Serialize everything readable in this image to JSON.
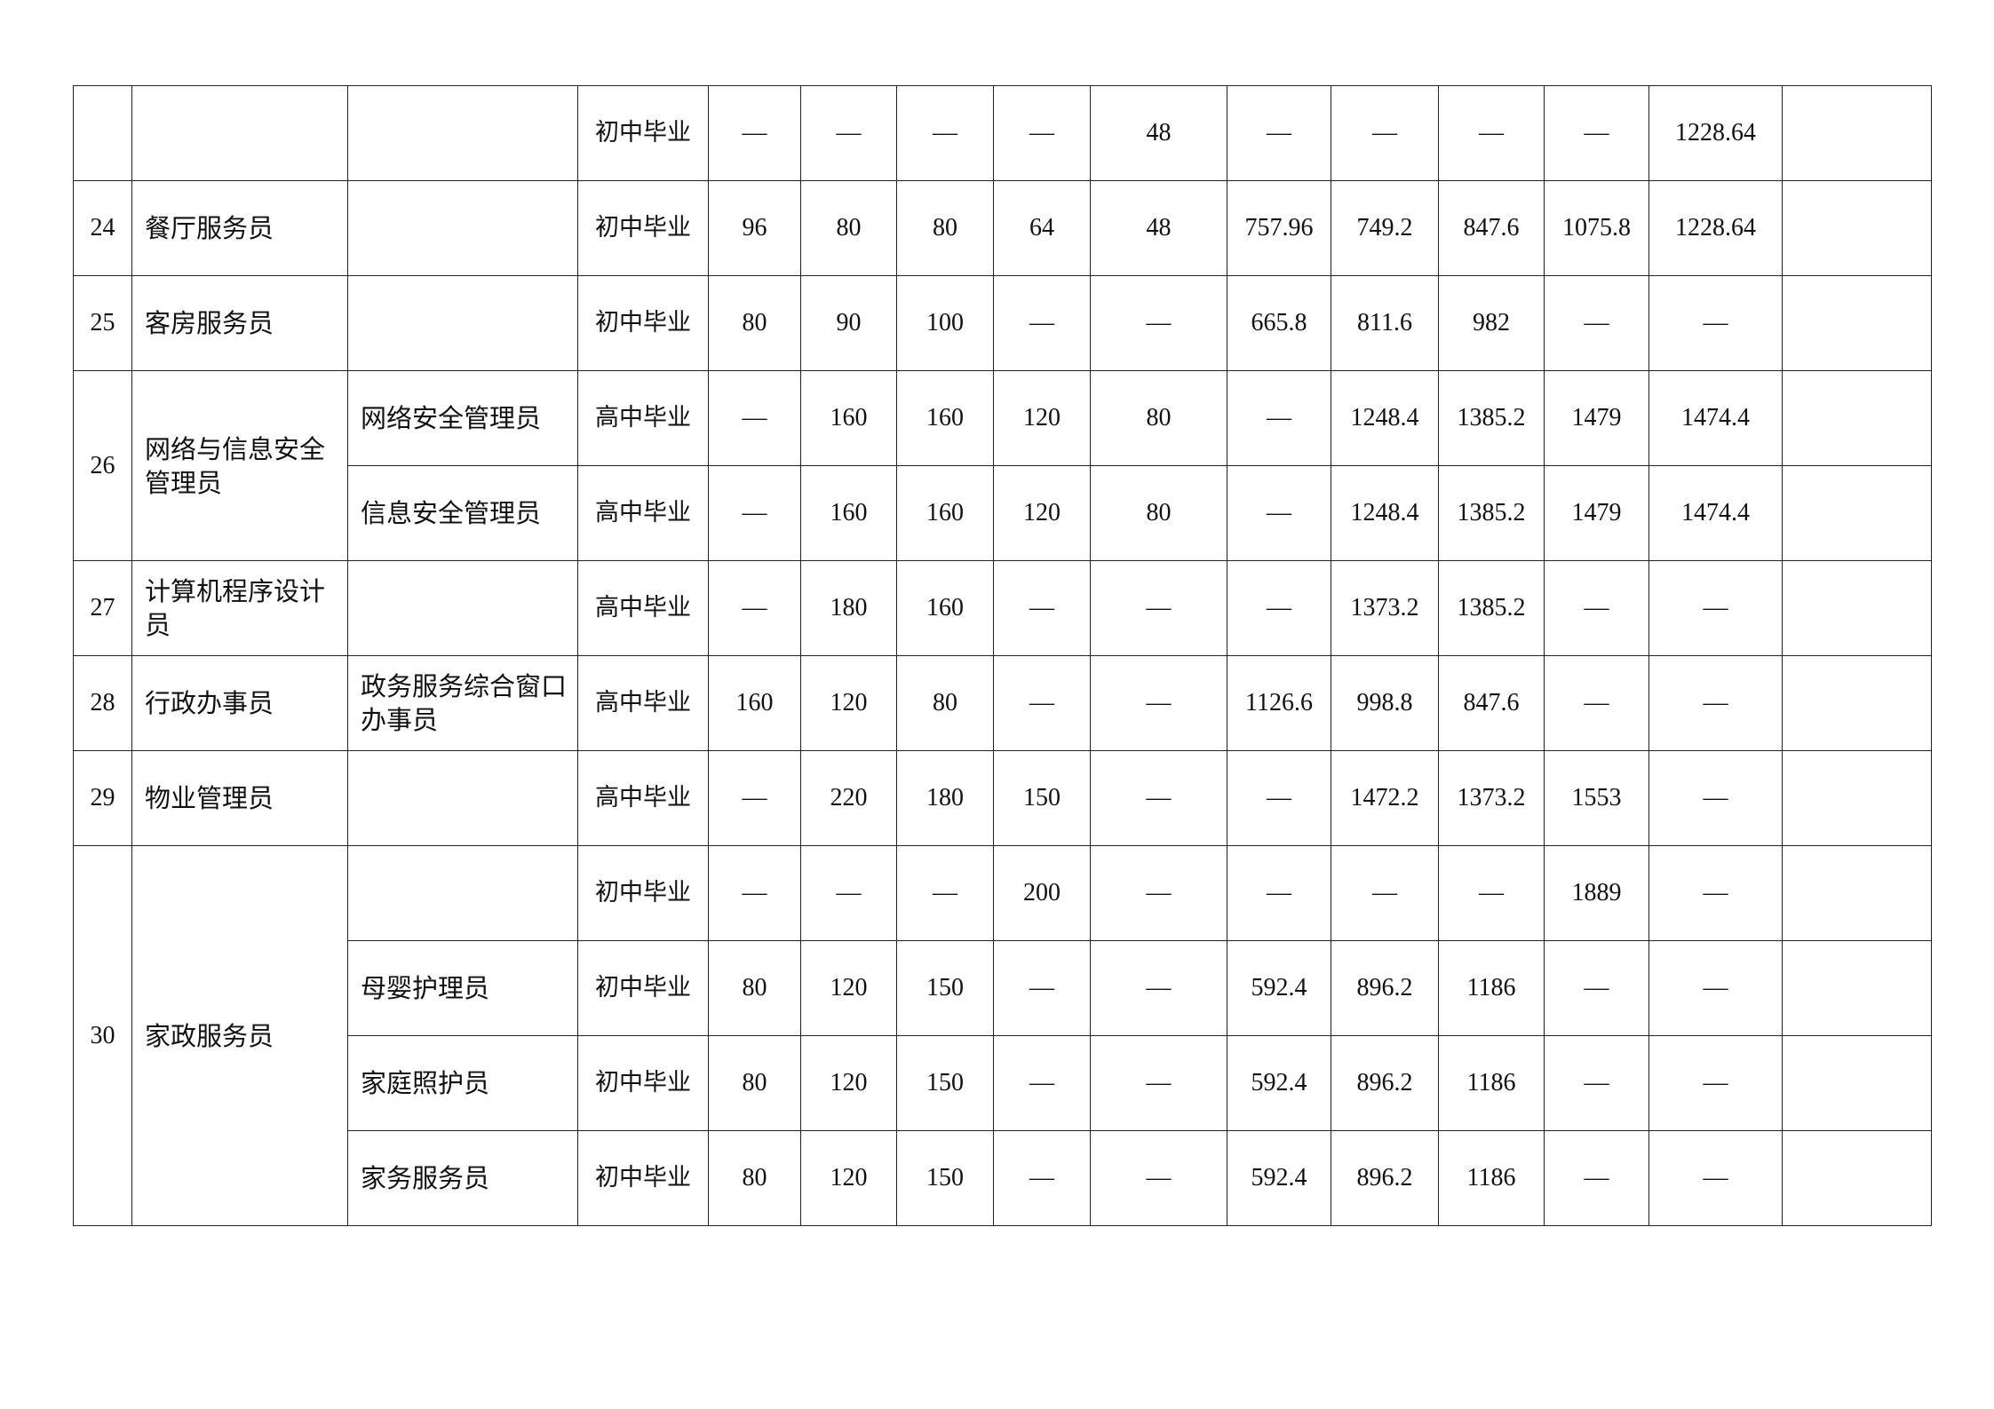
{
  "table": {
    "groups": [
      {
        "no": "",
        "name": "",
        "rows": [
          {
            "sub": "",
            "edu": "初中毕业",
            "values": [
              "—",
              "—",
              "—",
              "—",
              "48",
              "—",
              "—",
              "—",
              "—",
              "1228.64"
            ],
            "note": ""
          }
        ]
      },
      {
        "no": "24",
        "name": "餐厅服务员",
        "rows": [
          {
            "sub": "",
            "edu": "初中毕业",
            "values": [
              "96",
              "80",
              "80",
              "64",
              "48",
              "757.96",
              "749.2",
              "847.6",
              "1075.8",
              "1228.64"
            ],
            "note": ""
          }
        ]
      },
      {
        "no": "25",
        "name": "客房服务员",
        "rows": [
          {
            "sub": "",
            "edu": "初中毕业",
            "values": [
              "80",
              "90",
              "100",
              "—",
              "—",
              "665.8",
              "811.6",
              "982",
              "—",
              "—"
            ],
            "note": ""
          }
        ]
      },
      {
        "no": "26",
        "name": "网络与信息安全管理员",
        "rows": [
          {
            "sub": "网络安全管理员",
            "edu": "高中毕业",
            "values": [
              "—",
              "160",
              "160",
              "120",
              "80",
              "—",
              "1248.4",
              "1385.2",
              "1479",
              "1474.4"
            ],
            "note": ""
          },
          {
            "sub": "信息安全管理员",
            "edu": "高中毕业",
            "values": [
              "—",
              "160",
              "160",
              "120",
              "80",
              "—",
              "1248.4",
              "1385.2",
              "1479",
              "1474.4"
            ],
            "note": ""
          }
        ]
      },
      {
        "no": "27",
        "name": "计算机程序设计员",
        "rows": [
          {
            "sub": "",
            "edu": "高中毕业",
            "values": [
              "—",
              "180",
              "160",
              "—",
              "—",
              "—",
              "1373.2",
              "1385.2",
              "—",
              "—"
            ],
            "note": ""
          }
        ]
      },
      {
        "no": "28",
        "name": "行政办事员",
        "rows": [
          {
            "sub": "政务服务综合窗口办事员",
            "edu": "高中毕业",
            "values": [
              "160",
              "120",
              "80",
              "—",
              "—",
              "1126.6",
              "998.8",
              "847.6",
              "—",
              "—"
            ],
            "note": ""
          }
        ]
      },
      {
        "no": "29",
        "name": "物业管理员",
        "rows": [
          {
            "sub": "",
            "edu": "高中毕业",
            "values": [
              "—",
              "220",
              "180",
              "150",
              "—",
              "—",
              "1472.2",
              "1373.2",
              "1553",
              "—"
            ],
            "note": ""
          }
        ]
      },
      {
        "no": "30",
        "name": "家政服务员",
        "rows": [
          {
            "sub": "",
            "edu": "初中毕业",
            "values": [
              "—",
              "—",
              "—",
              "200",
              "—",
              "—",
              "—",
              "—",
              "1889",
              "—"
            ],
            "note": ""
          },
          {
            "sub": "母婴护理员",
            "edu": "初中毕业",
            "values": [
              "80",
              "120",
              "150",
              "—",
              "—",
              "592.4",
              "896.2",
              "1186",
              "—",
              "—"
            ],
            "note": ""
          },
          {
            "sub": "家庭照护员",
            "edu": "初中毕业",
            "values": [
              "80",
              "120",
              "150",
              "—",
              "—",
              "592.4",
              "896.2",
              "1186",
              "—",
              "—"
            ],
            "note": ""
          },
          {
            "sub": "家务服务员",
            "edu": "初中毕业",
            "values": [
              "80",
              "120",
              "150",
              "—",
              "—",
              "592.4",
              "896.2",
              "1186",
              "—",
              "—"
            ],
            "note": ""
          }
        ]
      }
    ]
  }
}
